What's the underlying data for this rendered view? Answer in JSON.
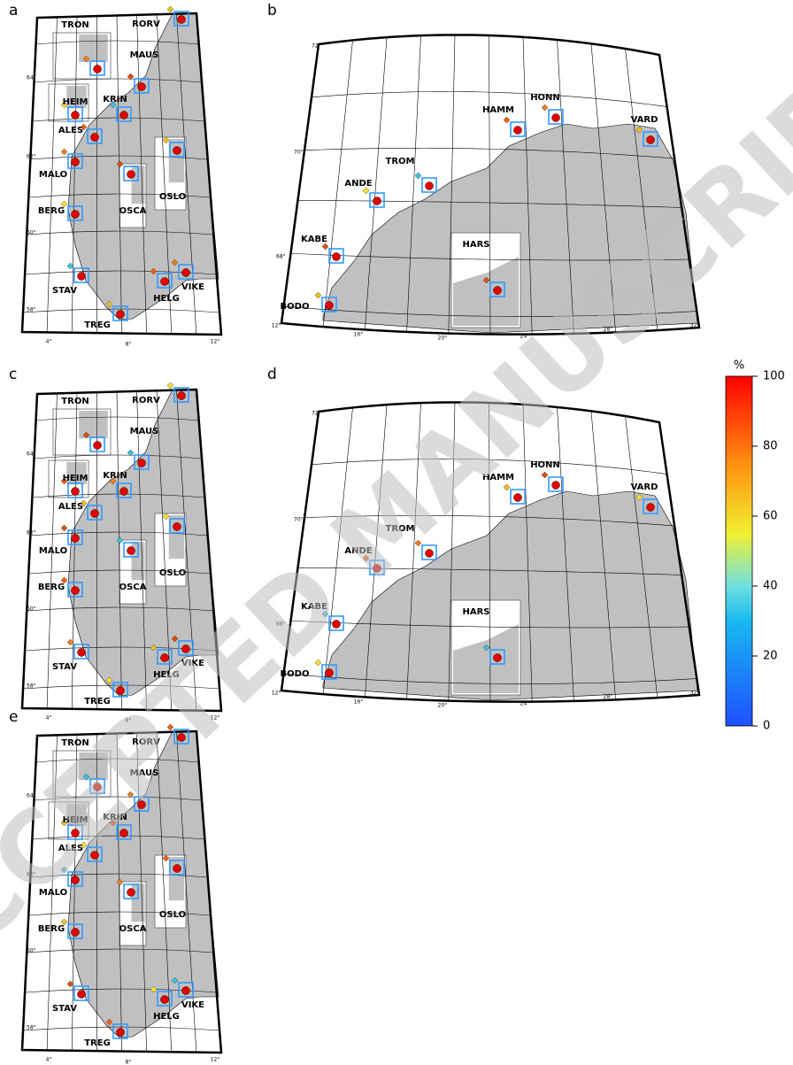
{
  "panel_labels": [
    "a",
    "b",
    "c",
    "d",
    "e"
  ],
  "south_map": {
    "stations": [
      "TRON",
      "RORV",
      "MAUS",
      "HEIM",
      "KRIN",
      "ALES",
      "MALO",
      "OSLO",
      "OSCA",
      "BERG",
      "STAV",
      "HELG",
      "VIKE",
      "TREG"
    ],
    "lon_ticks": [
      "4°",
      "8°",
      "12°"
    ],
    "lat_ticks": [
      "64°",
      "62°",
      "60°",
      "58°"
    ]
  },
  "north_map": {
    "stations": [
      "BODO",
      "KABE",
      "ANDE",
      "TROM",
      "HAMM",
      "HONN",
      "VARD",
      "HARS"
    ],
    "lon_ticks": [
      "12°",
      "16°",
      "20°",
      "24°",
      "28°",
      "32°"
    ],
    "lat_ticks": [
      "72°",
      "70°",
      "68°"
    ]
  },
  "colorbar": {
    "label": "%",
    "lim": [
      0,
      100
    ],
    "ticks": [
      0,
      20,
      40,
      60,
      80,
      100
    ]
  },
  "watermark": "ACCEPTED MANUSCRIPT"
}
